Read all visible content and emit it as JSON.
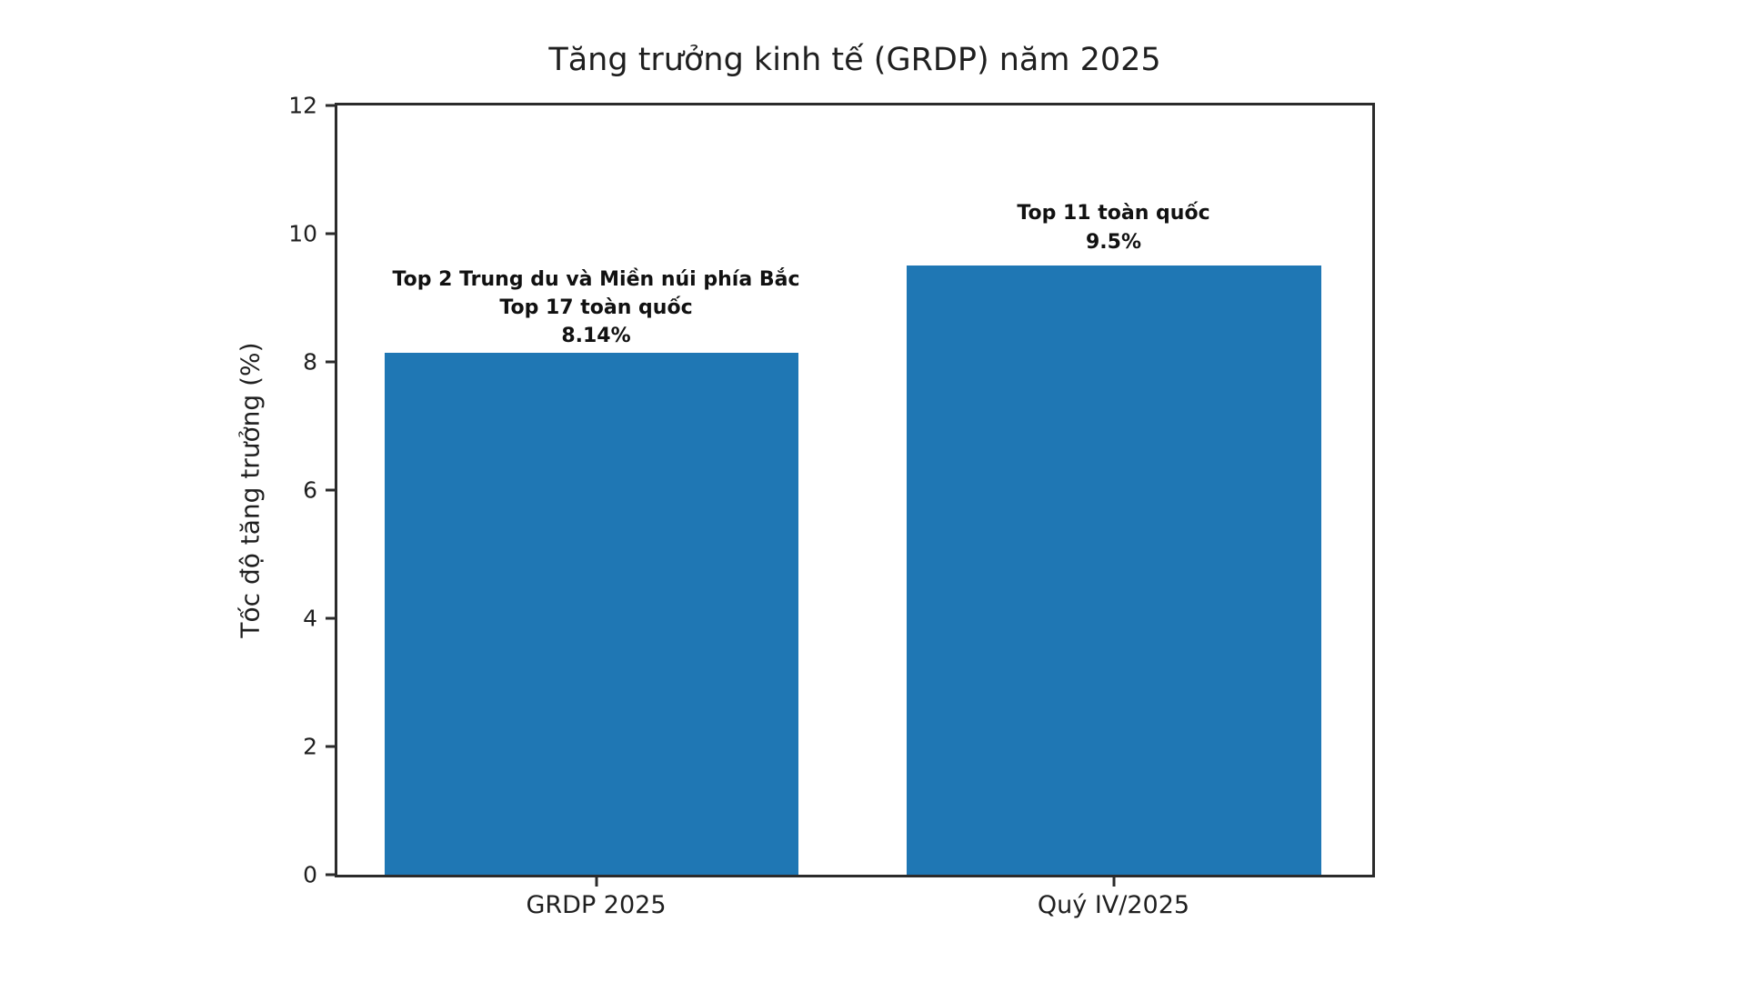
{
  "chart_data": {
    "type": "bar",
    "title": "Tăng trưởng kinh tế (GRDP) năm 2025",
    "xlabel": "",
    "ylabel": "Tốc độ tăng trưởng (%)",
    "categories": [
      "GRDP 2025",
      "Quý IV/2025"
    ],
    "values": [
      8.14,
      9.5
    ],
    "ylim": [
      0,
      12
    ],
    "yticks": [
      0,
      2,
      4,
      6,
      8,
      10,
      12
    ],
    "grid": false,
    "legend": false,
    "bar_color": "#1f77b4",
    "annotations": [
      {
        "bar": "GRDP 2025",
        "lines": [
          "Top 2 Trung du và Miền núi phía Bắc",
          "Top 17 toàn quốc",
          "8.14%"
        ]
      },
      {
        "bar": "Quý IV/2025",
        "lines": [
          "Top 11 toàn quốc",
          "9.5%"
        ]
      }
    ]
  }
}
